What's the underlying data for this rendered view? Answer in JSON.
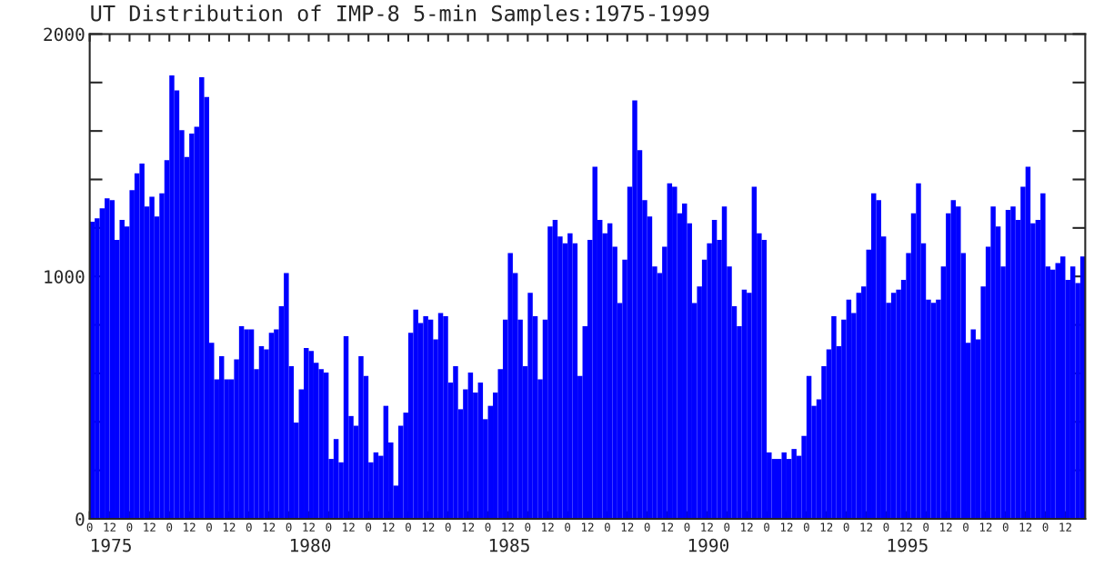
{
  "chart_data": {
    "type": "bar",
    "title": "UT Distribution of IMP-8 5-min Samples:1975-1999",
    "color": "#0000ff",
    "categories": [
      "0",
      null,
      null,
      null,
      "12",
      null,
      null,
      null,
      "0",
      null,
      null,
      null,
      "12",
      null,
      null,
      null,
      "0",
      null,
      null,
      null,
      "12",
      null,
      null,
      null,
      "0",
      null,
      null,
      null,
      "12",
      null,
      null,
      null,
      "0",
      null,
      null,
      null,
      "12",
      null,
      null,
      null,
      "0",
      null,
      null,
      null,
      "12",
      null,
      null,
      null,
      "0",
      null,
      null,
      null,
      "12",
      null,
      null,
      null,
      "0",
      null,
      null,
      null,
      "12",
      null,
      null,
      null,
      "0",
      null,
      null,
      null,
      "12",
      null,
      null,
      null,
      "0",
      null,
      null,
      null,
      "12",
      null,
      null,
      null,
      "0",
      null,
      null,
      null,
      "12",
      null,
      null,
      null,
      "0",
      null,
      null,
      null,
      "12",
      null,
      null,
      null,
      "0",
      null,
      null,
      null,
      "12",
      null,
      null,
      null,
      "0",
      null,
      null,
      null,
      "12",
      null,
      null,
      null,
      "0",
      null,
      null,
      null,
      "12",
      null,
      null,
      null,
      "0",
      null,
      null,
      null,
      "12",
      null,
      null,
      null,
      "0",
      null,
      null,
      null,
      "12",
      null,
      null,
      null,
      "0",
      null,
      null,
      null,
      "12",
      null,
      null,
      null,
      "0",
      null,
      null,
      null,
      "12",
      null,
      null,
      null,
      "0",
      null,
      null,
      null,
      "12",
      null,
      null,
      null,
      "0",
      null,
      null,
      null,
      "12",
      null,
      null,
      null,
      "0",
      null,
      null,
      null,
      "12",
      null,
      null,
      null,
      "0",
      null,
      null,
      null,
      "12",
      null,
      null,
      null,
      "0",
      null,
      null,
      null,
      "12",
      null,
      null,
      null,
      "0",
      null,
      null,
      null,
      "12",
      null,
      null,
      null
    ],
    "values": [
      1226,
      1240,
      1281,
      1322,
      1315,
      1151,
      1233,
      1206,
      1356,
      1425,
      1466,
      1288,
      1329,
      1247,
      1343,
      1480,
      1829,
      1767,
      1603,
      1493,
      1589,
      1617,
      1822,
      1740,
      726,
      575,
      671,
      575,
      575,
      658,
      795,
      781,
      781,
      617,
      712,
      699,
      767,
      781,
      877,
      1014,
      630,
      397,
      534,
      705,
      692,
      644,
      617,
      603,
      247,
      329,
      233,
      753,
      424,
      384,
      671,
      589,
      233,
      274,
      260,
      466,
      315,
      137,
      384,
      438,
      767,
      863,
      808,
      836,
      822,
      740,
      849,
      836,
      562,
      630,
      452,
      534,
      603,
      521,
      562,
      411,
      466,
      521,
      617,
      822,
      1096,
      1014,
      822,
      630,
      932,
      836,
      575,
      822,
      1206,
      1233,
      1165,
      1137,
      1178,
      1137,
      589,
      795,
      1151,
      1452,
      1233,
      1178,
      1219,
      1123,
      890,
      1069,
      1370,
      1726,
      1521,
      1315,
      1247,
      1041,
      1014,
      1123,
      1384,
      1370,
      1260,
      1301,
      1219,
      890,
      959,
      1069,
      1137,
      1233,
      1151,
      1288,
      1041,
      877,
      795,
      945,
      932,
      1370,
      1178,
      1151,
      274,
      247,
      247,
      274,
      247,
      288,
      260,
      342,
      589,
      466,
      493,
      630,
      699,
      836,
      712,
      822,
      904,
      849,
      932,
      959,
      1110,
      1343,
      1315,
      1165,
      891,
      932,
      945,
      986,
      1096,
      1260,
      1384,
      1137,
      904,
      891,
      904,
      1041,
      1260,
      1315,
      1288,
      1096,
      726,
      781,
      740,
      959,
      1123,
      1288,
      1206,
      1041,
      1274,
      1288,
      1233,
      1370,
      1452,
      1219,
      1233,
      1343,
      1041,
      1028,
      1055,
      1082,
      986,
      1041,
      973,
      1082
    ],
    "annotations": [
      "1975",
      "1980",
      "1985",
      "1990",
      "1995"
    ],
    "ylim": [
      0,
      2000
    ],
    "yticks": [
      0,
      {
        "value": 200,
        "label": null
      },
      {
        "value": 400,
        "label": null
      },
      {
        "value": 600,
        "label": null
      },
      {
        "value": 800,
        "label": null
      },
      1000,
      {
        "value": 1200,
        "label": null
      },
      {
        "value": 1400,
        "label": null
      },
      {
        "value": 1600,
        "label": null
      },
      {
        "value": 1800,
        "label": null
      },
      2000
    ],
    "grid": false,
    "legend": false
  }
}
